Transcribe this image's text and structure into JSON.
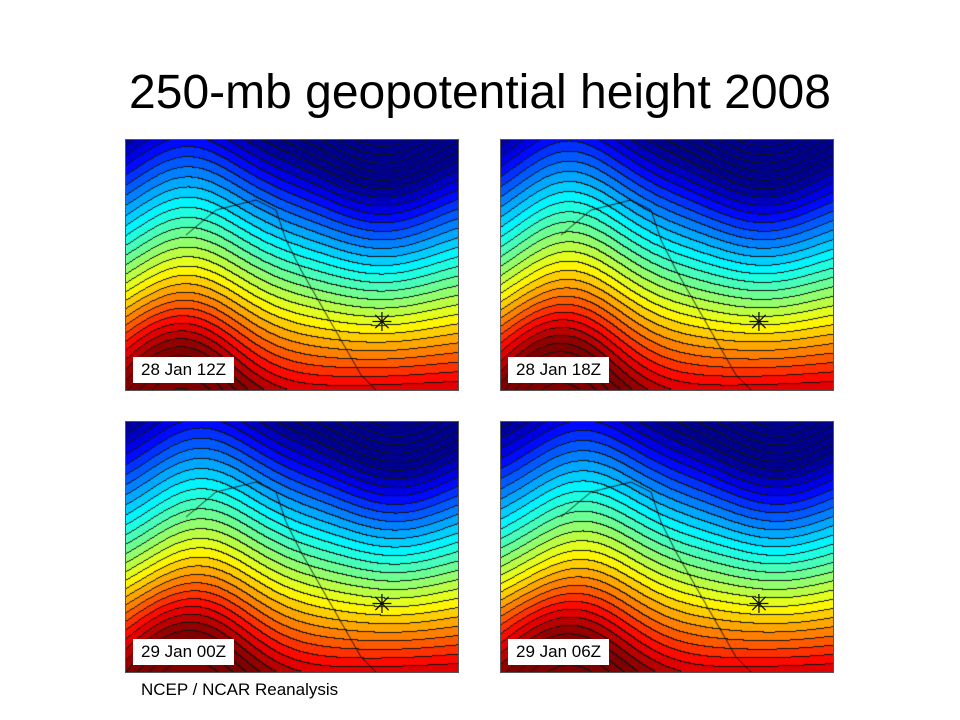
{
  "slide": {
    "title": "250-mb geopotential height 2008",
    "source": "NCEP / NCAR Reanalysis"
  },
  "panels": [
    {
      "label": "28 Jan 12Z",
      "marker_icon": "asterisk-location-marker"
    },
    {
      "label": "28 Jan 18Z",
      "marker_icon": "asterisk-location-marker"
    },
    {
      "label": "29 Jan 00Z",
      "marker_icon": "asterisk-location-marker"
    },
    {
      "label": "29 Jan 06Z",
      "marker_icon": "asterisk-location-marker"
    }
  ],
  "colors": {
    "colormap": [
      "#00008f",
      "#0000ff",
      "#0080ff",
      "#00ffff",
      "#80ff80",
      "#ffff00",
      "#ff8000",
      "#ff0000",
      "#800000"
    ],
    "contour_line": "#000000"
  }
}
